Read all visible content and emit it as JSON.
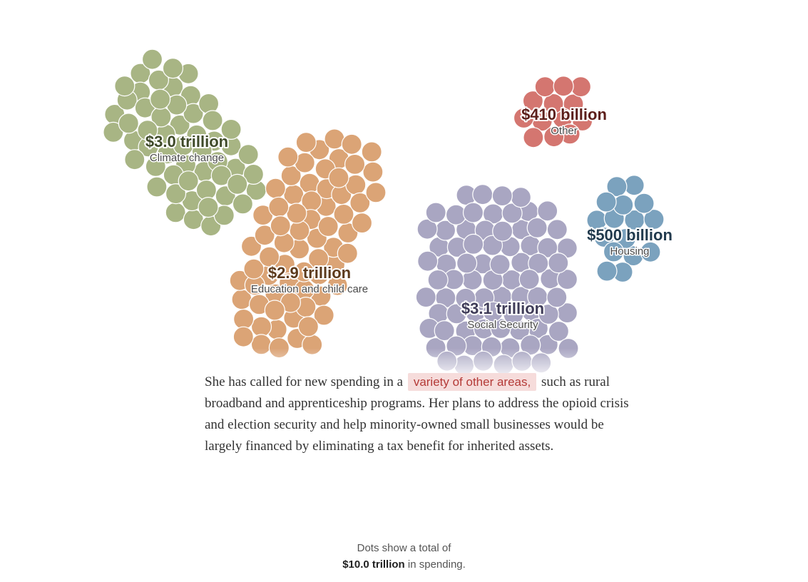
{
  "chart_data": {
    "type": "bubble-cluster",
    "unit_note": "each dot is an equal share of total spending",
    "total": "$10.0 trillion",
    "categories": [
      {
        "key": "climate",
        "amount_label": "$3.0 trillion",
        "name": "Climate change",
        "value_billions": 3000,
        "color": "#a8b584",
        "label_color": "#3f4a29"
      },
      {
        "key": "education",
        "amount_label": "$2.9 trillion",
        "name": "Education and child care",
        "value_billions": 2900,
        "color": "#dba476",
        "label_color": "#5c3a1c"
      },
      {
        "key": "social",
        "amount_label": "$3.1 trillion",
        "name": "Social Security",
        "value_billions": 3100,
        "color": "#a9a6c2",
        "label_color": "#3f3c58"
      },
      {
        "key": "other",
        "amount_label": "$410 billion",
        "name": "Other",
        "value_billions": 410,
        "color": "#d47670",
        "label_color": "#5c1e1a"
      },
      {
        "key": "housing",
        "amount_label": "$500 billion",
        "name": "Housing",
        "value_billions": 500,
        "color": "#7ba2be",
        "label_color": "#213a4d"
      }
    ]
  },
  "story": {
    "before": "She has called for new spending in a",
    "highlight": "variety of other areas,",
    "after": "such as rural broadband and apprenticeship programs. Her plans to address the opioid crisis and election security and help minority-owned small businesses would be largely financed by eliminating a tax benefit for inherited assets."
  },
  "footnote": {
    "line1": "Dots show a total of",
    "total": "$10.0 trillion",
    "suffix": "in spending."
  }
}
